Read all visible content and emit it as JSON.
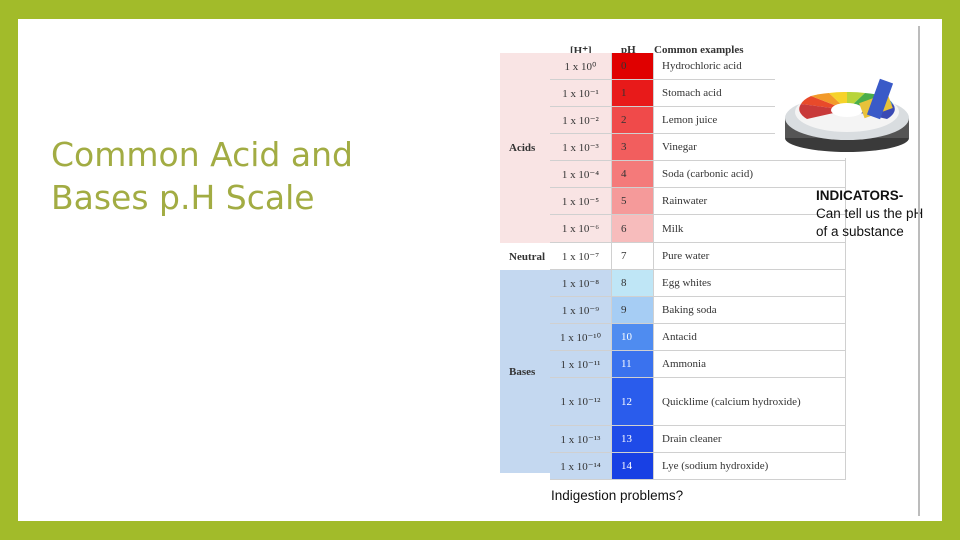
{
  "slide": {
    "title_line1": "Common Acid and",
    "title_line2": "Bases p.H Scale"
  },
  "table": {
    "headers": {
      "h": "[H⁺]",
      "ph": "pH",
      "examples": "Common examples"
    },
    "groups": {
      "acids": "Acids",
      "neutral": "Neutral",
      "bases": "Bases"
    },
    "rows": [
      {
        "h": "1 x 10⁰",
        "ph": "0",
        "example": "Hydrochloric acid"
      },
      {
        "h": "1 x 10⁻¹",
        "ph": "1",
        "example": "Stomach acid"
      },
      {
        "h": "1 x 10⁻²",
        "ph": "2",
        "example": "Lemon juice"
      },
      {
        "h": "1 x 10⁻³",
        "ph": "3",
        "example": "Vinegar"
      },
      {
        "h": "1 x 10⁻⁴",
        "ph": "4",
        "example": "Soda (carbonic acid)"
      },
      {
        "h": "1 x 10⁻⁵",
        "ph": "5",
        "example": "Rainwater"
      },
      {
        "h": "1 x 10⁻⁶",
        "ph": "6",
        "example": "Milk"
      },
      {
        "h": "1 x 10⁻⁷",
        "ph": "7",
        "example": "Pure water"
      },
      {
        "h": "1 x 10⁻⁸",
        "ph": "8",
        "example": "Egg whites"
      },
      {
        "h": "1 x 10⁻⁹",
        "ph": "9",
        "example": "Baking soda"
      },
      {
        "h": "1 x 10⁻¹⁰",
        "ph": "10",
        "example": "Antacid"
      },
      {
        "h": "1 x 10⁻¹¹",
        "ph": "11",
        "example": "Ammonia"
      },
      {
        "h": "1 x 10⁻¹²",
        "ph": "12",
        "example": "Quicklime (calcium hydroxide)"
      },
      {
        "h": "1 x 10⁻¹³",
        "ph": "13",
        "example": "Drain cleaner"
      },
      {
        "h": "1 x 10⁻¹⁴",
        "ph": "14",
        "example": "Lye (sodium hydroxide)"
      }
    ],
    "ph_colors": [
      "#e00000",
      "#e81a1a",
      "#f04a4a",
      "#f25e5e",
      "#f47a7a",
      "#f59a9a",
      "#f7bcbc",
      "#ffffff",
      "#bfe6f6",
      "#a6cdf4",
      "#4f8cf0",
      "#3a72ee",
      "#2a5cec",
      "#1f4be8",
      "#1840e4"
    ],
    "group_colors": {
      "acids": "#f9e4e4",
      "neutral": "#ffffff",
      "bases": "#c4d8f0"
    }
  },
  "indicators": {
    "heading": "INDICATORS-",
    "text": "Can tell us the pH of a substance"
  },
  "question": "Indigestion problems?",
  "icons": {
    "photo": "ph-indicator-paper-dispenser-icon"
  }
}
